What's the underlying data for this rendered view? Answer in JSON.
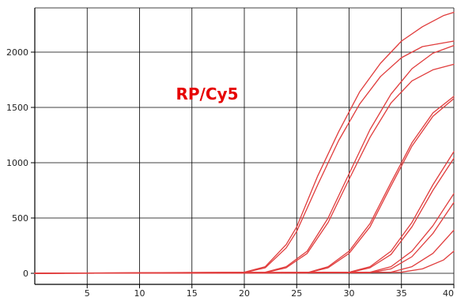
{
  "chart_data": {
    "type": "line",
    "title": "",
    "xlabel": "",
    "ylabel": "",
    "annotation": "RP/Cy5",
    "xlim": [
      0,
      40
    ],
    "ylim": [
      -100,
      2400
    ],
    "x_ticks": [
      5,
      10,
      15,
      20,
      25,
      30,
      35,
      40
    ],
    "y_ticks": [
      0,
      500,
      1000,
      1500,
      2000
    ],
    "grid": true,
    "legend": "none",
    "colors": {
      "series": "#e03c3c",
      "annotation": "#e60000",
      "grid": "#000000",
      "axis": "#000000"
    },
    "series": [
      {
        "values": [
          [
            0,
            0
          ],
          [
            20,
            10
          ],
          [
            22,
            60
          ],
          [
            24,
            260
          ],
          [
            25,
            420
          ],
          [
            27,
            880
          ],
          [
            29,
            1280
          ],
          [
            31,
            1640
          ],
          [
            33,
            1900
          ],
          [
            35,
            2100
          ],
          [
            37,
            2230
          ],
          [
            39,
            2330
          ],
          [
            40,
            2360
          ]
        ]
      },
      {
        "values": [
          [
            0,
            0
          ],
          [
            20,
            5
          ],
          [
            22,
            50
          ],
          [
            24,
            230
          ],
          [
            25,
            380
          ],
          [
            27,
            800
          ],
          [
            29,
            1200
          ],
          [
            31,
            1530
          ],
          [
            33,
            1780
          ],
          [
            35,
            1950
          ],
          [
            37,
            2050
          ],
          [
            40,
            2100
          ]
        ]
      },
      {
        "values": [
          [
            0,
            0
          ],
          [
            22,
            10
          ],
          [
            24,
            60
          ],
          [
            26,
            200
          ],
          [
            28,
            500
          ],
          [
            30,
            900
          ],
          [
            32,
            1300
          ],
          [
            34,
            1620
          ],
          [
            36,
            1850
          ],
          [
            38,
            1990
          ],
          [
            40,
            2060
          ]
        ]
      },
      {
        "values": [
          [
            0,
            0
          ],
          [
            22,
            5
          ],
          [
            24,
            50
          ],
          [
            26,
            180
          ],
          [
            28,
            460
          ],
          [
            30,
            850
          ],
          [
            32,
            1230
          ],
          [
            34,
            1540
          ],
          [
            36,
            1740
          ],
          [
            38,
            1840
          ],
          [
            40,
            1890
          ]
        ]
      },
      {
        "values": [
          [
            0,
            0
          ],
          [
            26,
            5
          ],
          [
            28,
            60
          ],
          [
            30,
            200
          ],
          [
            32,
            450
          ],
          [
            34,
            820
          ],
          [
            36,
            1180
          ],
          [
            38,
            1450
          ],
          [
            40,
            1600
          ]
        ]
      },
      {
        "values": [
          [
            0,
            0
          ],
          [
            26,
            3
          ],
          [
            28,
            50
          ],
          [
            30,
            180
          ],
          [
            32,
            420
          ],
          [
            34,
            790
          ],
          [
            36,
            1150
          ],
          [
            38,
            1420
          ],
          [
            40,
            1580
          ]
        ]
      },
      {
        "values": [
          [
            0,
            0
          ],
          [
            30,
            10
          ],
          [
            32,
            60
          ],
          [
            34,
            200
          ],
          [
            36,
            460
          ],
          [
            38,
            800
          ],
          [
            40,
            1100
          ]
        ]
      },
      {
        "values": [
          [
            0,
            0
          ],
          [
            30,
            5
          ],
          [
            32,
            50
          ],
          [
            34,
            170
          ],
          [
            36,
            420
          ],
          [
            38,
            750
          ],
          [
            40,
            1040
          ]
        ]
      },
      {
        "values": [
          [
            0,
            0
          ],
          [
            32,
            10
          ],
          [
            34,
            60
          ],
          [
            36,
            200
          ],
          [
            38,
            430
          ],
          [
            40,
            720
          ]
        ]
      },
      {
        "values": [
          [
            0,
            0
          ],
          [
            32,
            5
          ],
          [
            34,
            40
          ],
          [
            36,
            150
          ],
          [
            38,
            360
          ],
          [
            40,
            640
          ]
        ]
      },
      {
        "values": [
          [
            0,
            0
          ],
          [
            34,
            10
          ],
          [
            36,
            60
          ],
          [
            38,
            180
          ],
          [
            40,
            390
          ]
        ]
      },
      {
        "values": [
          [
            0,
            0
          ],
          [
            35,
            10
          ],
          [
            37,
            40
          ],
          [
            39,
            120
          ],
          [
            40,
            200
          ]
        ]
      }
    ]
  }
}
